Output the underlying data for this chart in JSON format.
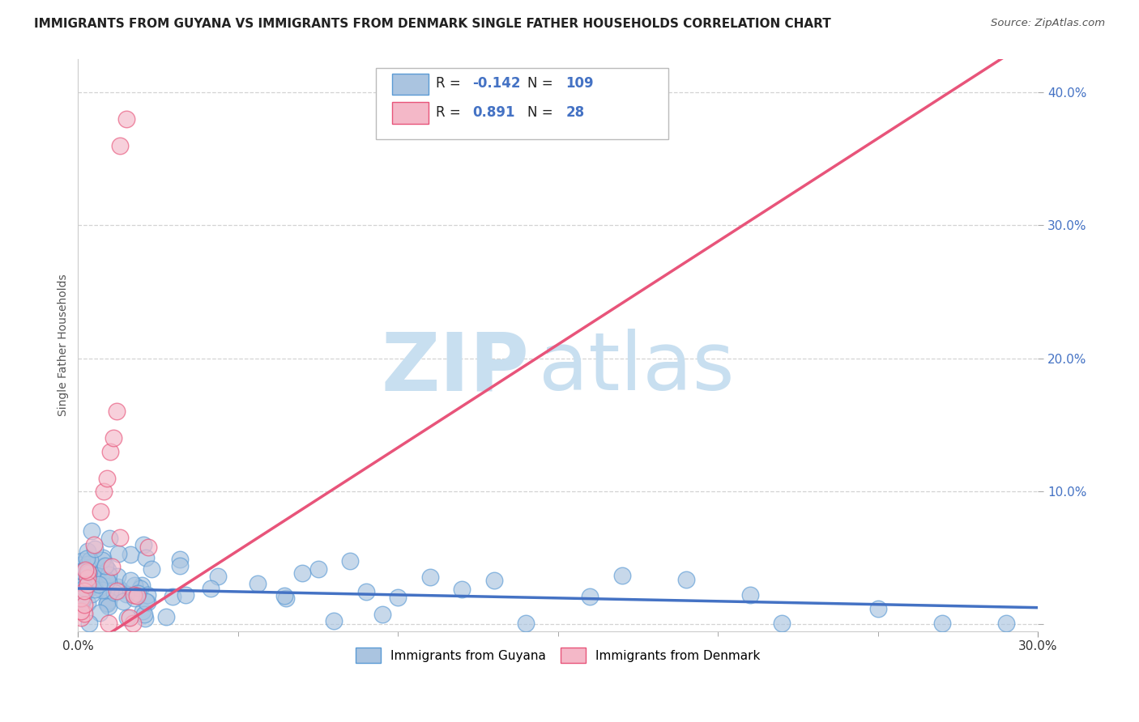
{
  "title": "IMMIGRANTS FROM GUYANA VS IMMIGRANTS FROM DENMARK SINGLE FATHER HOUSEHOLDS CORRELATION CHART",
  "source": "Source: ZipAtlas.com",
  "ylabel": "Single Father Households",
  "xmin": 0.0,
  "xmax": 0.3,
  "ymin": -0.005,
  "ymax": 0.425,
  "guyana_R": -0.142,
  "guyana_N": 109,
  "denmark_R": 0.891,
  "denmark_N": 28,
  "guyana_color": "#aac4e0",
  "guyana_edge_color": "#5b9bd5",
  "guyana_line_color": "#4472c4",
  "denmark_color": "#f4b8c8",
  "denmark_edge_color": "#e8547a",
  "denmark_line_color": "#e8547a",
  "legend_label_guyana": "Immigrants from Guyana",
  "legend_label_denmark": "Immigrants from Denmark",
  "background_color": "#ffffff",
  "grid_color": "#c8c8c8",
  "title_fontsize": 11,
  "watermark_zip": "ZIP",
  "watermark_atlas": "atlas",
  "watermark_color": "#c8dff0",
  "axis_label_color": "#4472c4",
  "y_tick_positions": [
    0.0,
    0.1,
    0.2,
    0.3,
    0.4
  ],
  "y_tick_labels": [
    "",
    "10.0%",
    "20.0%",
    "30.0%",
    "40.0%"
  ],
  "guyana_line_intercept": 0.027,
  "guyana_line_slope": -0.048,
  "denmark_line_intercept": -0.022,
  "denmark_line_slope": 1.55
}
